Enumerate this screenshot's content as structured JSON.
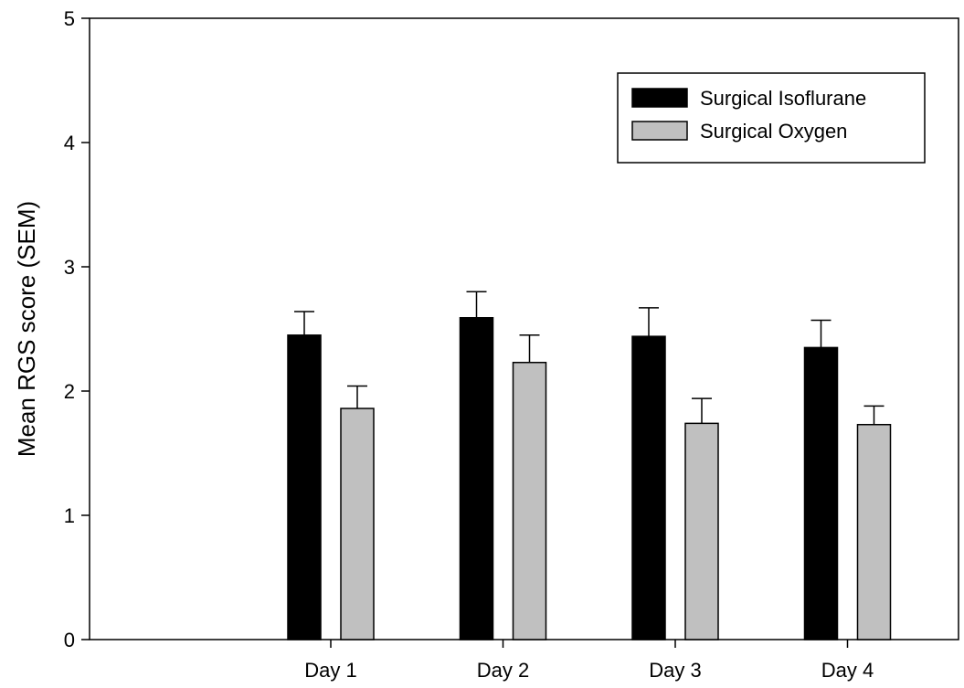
{
  "chart_data": {
    "type": "bar",
    "title": "",
    "xlabel": "",
    "ylabel": "Mean RGS score (SEM)",
    "ylim": [
      0,
      5
    ],
    "yticks": [
      0,
      1,
      2,
      3,
      4,
      5
    ],
    "categories": [
      "Day 1",
      "Day 2",
      "Day 3",
      "Day 4"
    ],
    "series": [
      {
        "name": "Surgical Isoflurane",
        "color": "#000000",
        "values": [
          2.45,
          2.59,
          2.44,
          2.35
        ],
        "errors": [
          0.19,
          0.21,
          0.23,
          0.22
        ]
      },
      {
        "name": "Surgical Oxygen",
        "color": "#c0c0c0",
        "values": [
          1.86,
          2.23,
          1.74,
          1.73
        ],
        "errors": [
          0.18,
          0.22,
          0.2,
          0.15
        ]
      }
    ],
    "error_bars": "upper",
    "legend_position": "top-right",
    "grid": false
  }
}
